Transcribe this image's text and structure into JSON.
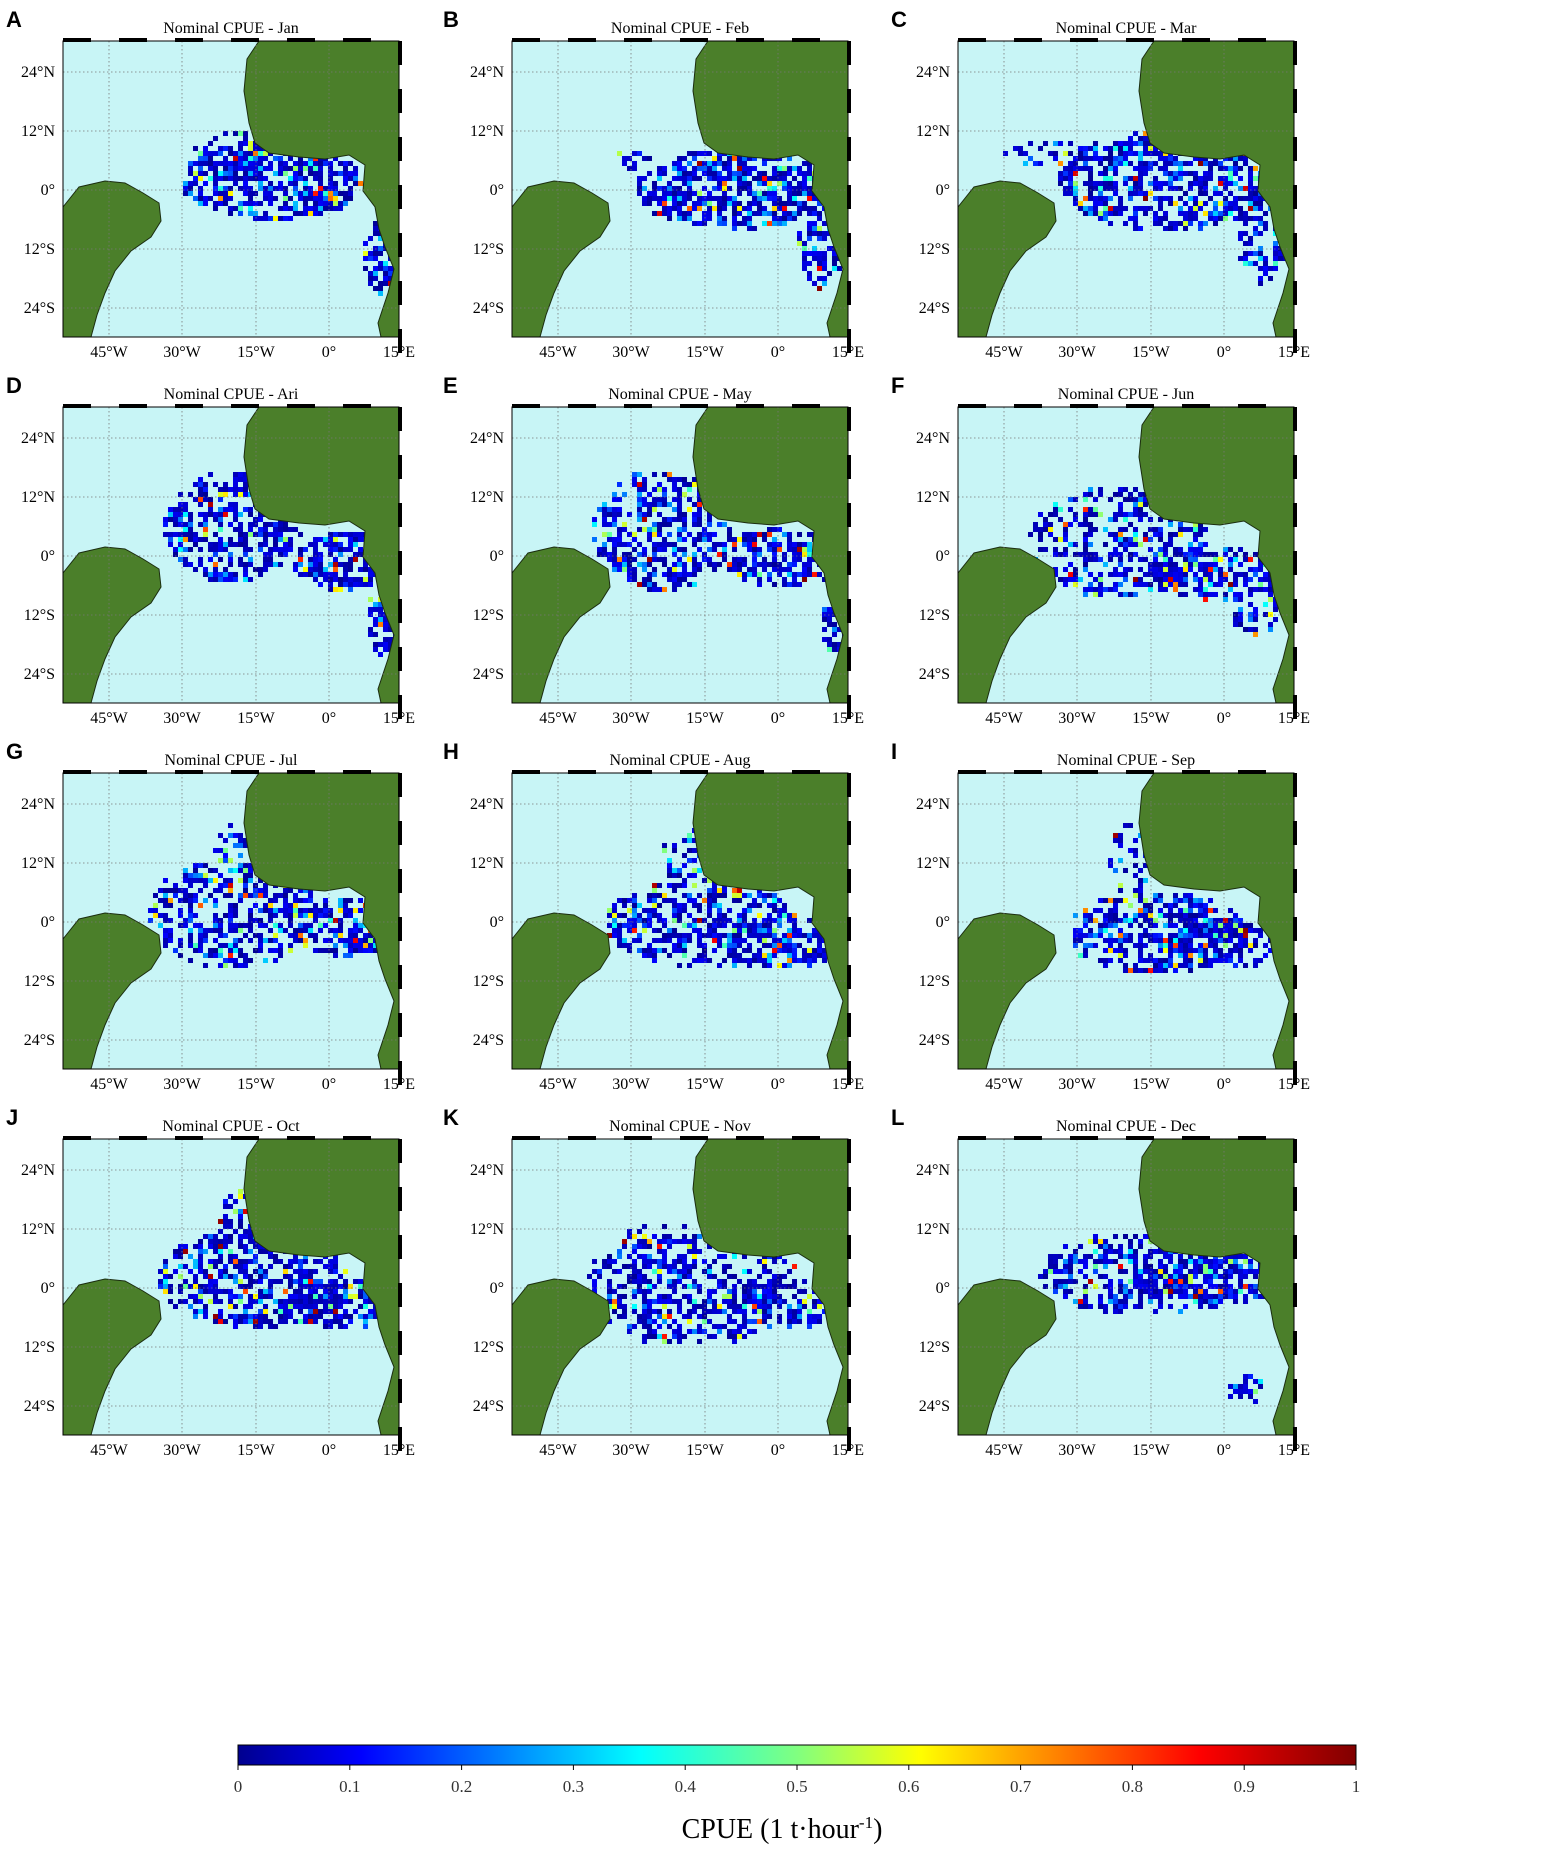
{
  "figure": {
    "panels": [
      {
        "letter": "A",
        "title": "Nominal CPUE - Jan"
      },
      {
        "letter": "B",
        "title": "Nominal CPUE - Feb"
      },
      {
        "letter": "C",
        "title": "Nominal CPUE - Mar"
      },
      {
        "letter": "D",
        "title": "Nominal CPUE - Ari"
      },
      {
        "letter": "E",
        "title": "Nominal CPUE - May"
      },
      {
        "letter": "F",
        "title": "Nominal CPUE - Jun"
      },
      {
        "letter": "G",
        "title": "Nominal CPUE - Jul"
      },
      {
        "letter": "H",
        "title": "Nominal CPUE - Aug"
      },
      {
        "letter": "I",
        "title": "Nominal CPUE - Sep"
      },
      {
        "letter": "J",
        "title": "Nominal CPUE - Oct"
      },
      {
        "letter": "K",
        "title": "Nominal CPUE - Nov"
      },
      {
        "letter": "L",
        "title": "Nominal CPUE - Dec"
      }
    ],
    "lat_labels": [
      "24°N",
      "12°N",
      "0°",
      "12°S",
      "24°S"
    ],
    "lon_labels": [
      "45°W",
      "30°W",
      "15°W",
      "0°",
      "15°E"
    ],
    "colors": {
      "ocean": "#c8f5f6",
      "land": "#4b7f2a",
      "grid": "#777777"
    }
  },
  "colorbar": {
    "label_main": "CPUE (1 t·hour",
    "label_sup": "-1",
    "label_end": ")",
    "ticks": [
      "0",
      "0.1",
      "0.2",
      "0.3",
      "0.4",
      "0.5",
      "0.6",
      "0.7",
      "0.8",
      "0.9",
      "1"
    ],
    "colormap": "jet",
    "range": [
      0,
      1
    ]
  }
}
